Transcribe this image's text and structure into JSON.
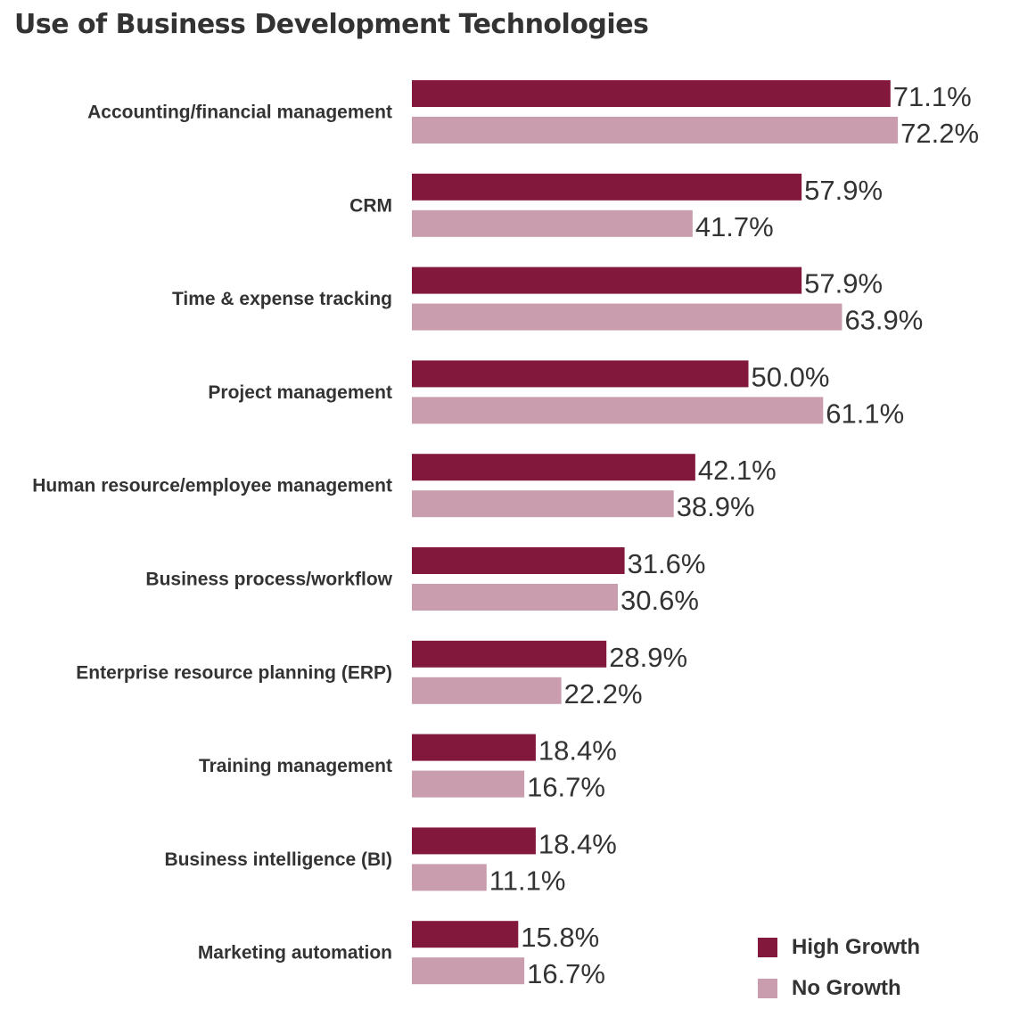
{
  "chart_data": {
    "type": "bar",
    "orientation": "horizontal",
    "title": "Use of Business Development Technologies",
    "categories": [
      "Accounting/financial management",
      "CRM",
      "Time & expense tracking",
      "Project management",
      "Human resource/employee management",
      "Business process/workflow",
      "Enterprise resource planning (ERP)",
      "Training management",
      "Business intelligence (BI)",
      "Marketing automation"
    ],
    "series": [
      {
        "name": "High Growth",
        "color": "#82193c",
        "values": [
          71.1,
          57.9,
          57.9,
          50.0,
          42.1,
          31.6,
          28.9,
          18.4,
          18.4,
          15.8
        ],
        "labels": [
          "71.1%",
          "57.9%",
          "57.9%",
          "50.0%",
          "42.1%",
          "31.6%",
          "28.9%",
          "18.4%",
          "18.4%",
          "15.8%"
        ]
      },
      {
        "name": "No Growth",
        "color": "#c99cae",
        "values": [
          72.2,
          41.7,
          63.9,
          61.1,
          38.9,
          30.6,
          22.2,
          16.7,
          11.1,
          16.7
        ],
        "labels": [
          "72.2%",
          "41.7%",
          "63.9%",
          "61.1%",
          "38.9%",
          "30.6%",
          "22.2%",
          "16.7%",
          "11.1%",
          "16.7%"
        ]
      }
    ],
    "value_unit": "%",
    "grid": false,
    "axes_visible": false,
    "legend_position": "bottom-right"
  }
}
